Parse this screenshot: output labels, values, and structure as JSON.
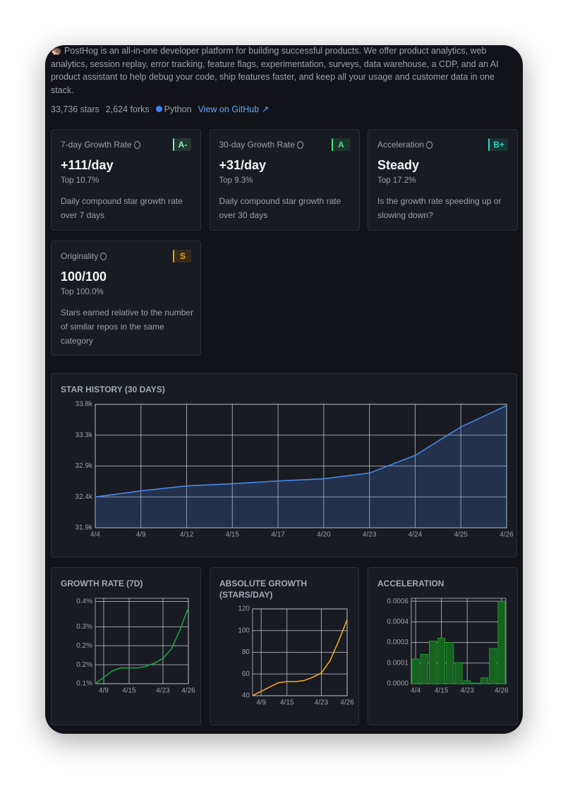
{
  "header": {
    "description": "🦔 PostHog is an all-in-one developer platform for building successful products. We offer product analytics, web analytics, session replay, error tracking, feature flags, experimentation, surveys, data warehouse, a CDP, and an AI product assistant to help debug your code, ship features faster, and keep all your usage and customer data in one stack.",
    "stars": "33,736 stars",
    "forks": "2,624 forks",
    "language": "Python",
    "language_color": "#3b82f6",
    "link": "View on GitHub ↗"
  },
  "cards": [
    {
      "label": "7-day Growth Rate",
      "grade": "A-",
      "color": "#86efac",
      "value": "+111/day",
      "rank": "Top 10.7%",
      "description": "Daily compound star growth rate over 7 days"
    },
    {
      "label": "30-day Growth Rate",
      "grade": "A",
      "color": "#4ade80",
      "value": "+31/day",
      "rank": "Top 9.3%",
      "description": "Daily compound star growth rate over 30 days"
    },
    {
      "label": "Acceleration",
      "grade": "B+",
      "color": "#2dd4bf",
      "value": "Steady",
      "rank": "Top 17.2%",
      "description": "Is the growth rate speeding up or slowing down?"
    },
    {
      "label": "Originality",
      "grade": "S",
      "color": "#f59e0b",
      "value": "100/100",
      "rank": "Top 100.0%",
      "description": "Stars earned relative to the number of similar repos in the same category"
    }
  ],
  "chart_data": [
    {
      "type": "line",
      "title": "STAR HISTORY (30 DAYS)",
      "color": "#4a86e8",
      "area": true,
      "grid": true,
      "categories": [
        "4/4",
        "4/9",
        "4/12",
        "4/15",
        "4/17",
        "4/20",
        "4/23",
        "4/24",
        "4/25",
        "4/26"
      ],
      "values": [
        32375,
        32468,
        32544,
        32577,
        32620,
        32653,
        32741,
        33014,
        33450,
        33780
      ],
      "ylim": [
        31900,
        33800
      ],
      "yticks": [
        {
          "value": 31900,
          "label": "31.9k"
        },
        {
          "value": 32375,
          "label": "32.4k"
        },
        {
          "value": 32850,
          "label": "32.9k"
        },
        {
          "value": 33325,
          "label": "33.3k"
        },
        {
          "value": 33800,
          "label": "33.8k"
        }
      ]
    },
    {
      "type": "line",
      "title": "GROWTH RATE (7D)",
      "color": "#16a34a",
      "grid": true,
      "categories": [
        null,
        "4/9",
        null,
        null,
        "4/15",
        null,
        null,
        null,
        "4/23",
        null,
        null,
        "4/26"
      ],
      "values": [
        0.1,
        0.12,
        0.14,
        0.15,
        0.15,
        0.15,
        0.155,
        0.165,
        0.18,
        0.21,
        0.27,
        0.34
      ],
      "ylim": [
        0.1,
        0.37
      ],
      "yticks": [
        {
          "value": 0.1,
          "label": "0.1%"
        },
        {
          "value": 0.16,
          "label": "0.2%"
        },
        {
          "value": 0.22,
          "label": "0.2%"
        },
        {
          "value": 0.28,
          "label": "0.3%"
        },
        {
          "value": 0.36,
          "label": "0.4%"
        }
      ]
    },
    {
      "type": "line",
      "title": "ABSOLUTE GROWTH (STARS/DAY)",
      "color": "#f5a623",
      "grid": true,
      "categories": [
        null,
        "4/9",
        null,
        null,
        "4/15",
        null,
        null,
        null,
        "4/23",
        null,
        null,
        "4/26"
      ],
      "values": [
        40,
        44,
        48,
        52,
        53,
        53,
        54,
        57,
        61,
        72,
        90,
        110
      ],
      "ylim": [
        40,
        120
      ],
      "yticks": [
        40,
        60,
        80,
        100,
        120
      ]
    },
    {
      "type": "bar",
      "title": "ACCELERATION",
      "color": "#15631f",
      "grid": true,
      "categories": [
        "4/4",
        null,
        null,
        "4/15",
        null,
        null,
        "4/23",
        null,
        null,
        null,
        "4/26"
      ],
      "values": [
        0.000168,
        0.0002,
        0.00029,
        0.00031,
        0.00028,
        0.000144,
        2e-05,
        5e-06,
        4e-05,
        0.00024,
        0.00056
      ],
      "ylim": [
        0,
        0.00058
      ],
      "yticks": [
        {
          "value": 0,
          "label": "0.0000"
        },
        {
          "value": 0.00014,
          "label": "0.0001"
        },
        {
          "value": 0.00028,
          "label": "0.0003"
        },
        {
          "value": 0.00042,
          "label": "0.0004"
        },
        {
          "value": 0.00056,
          "label": "0.0006"
        }
      ]
    }
  ]
}
